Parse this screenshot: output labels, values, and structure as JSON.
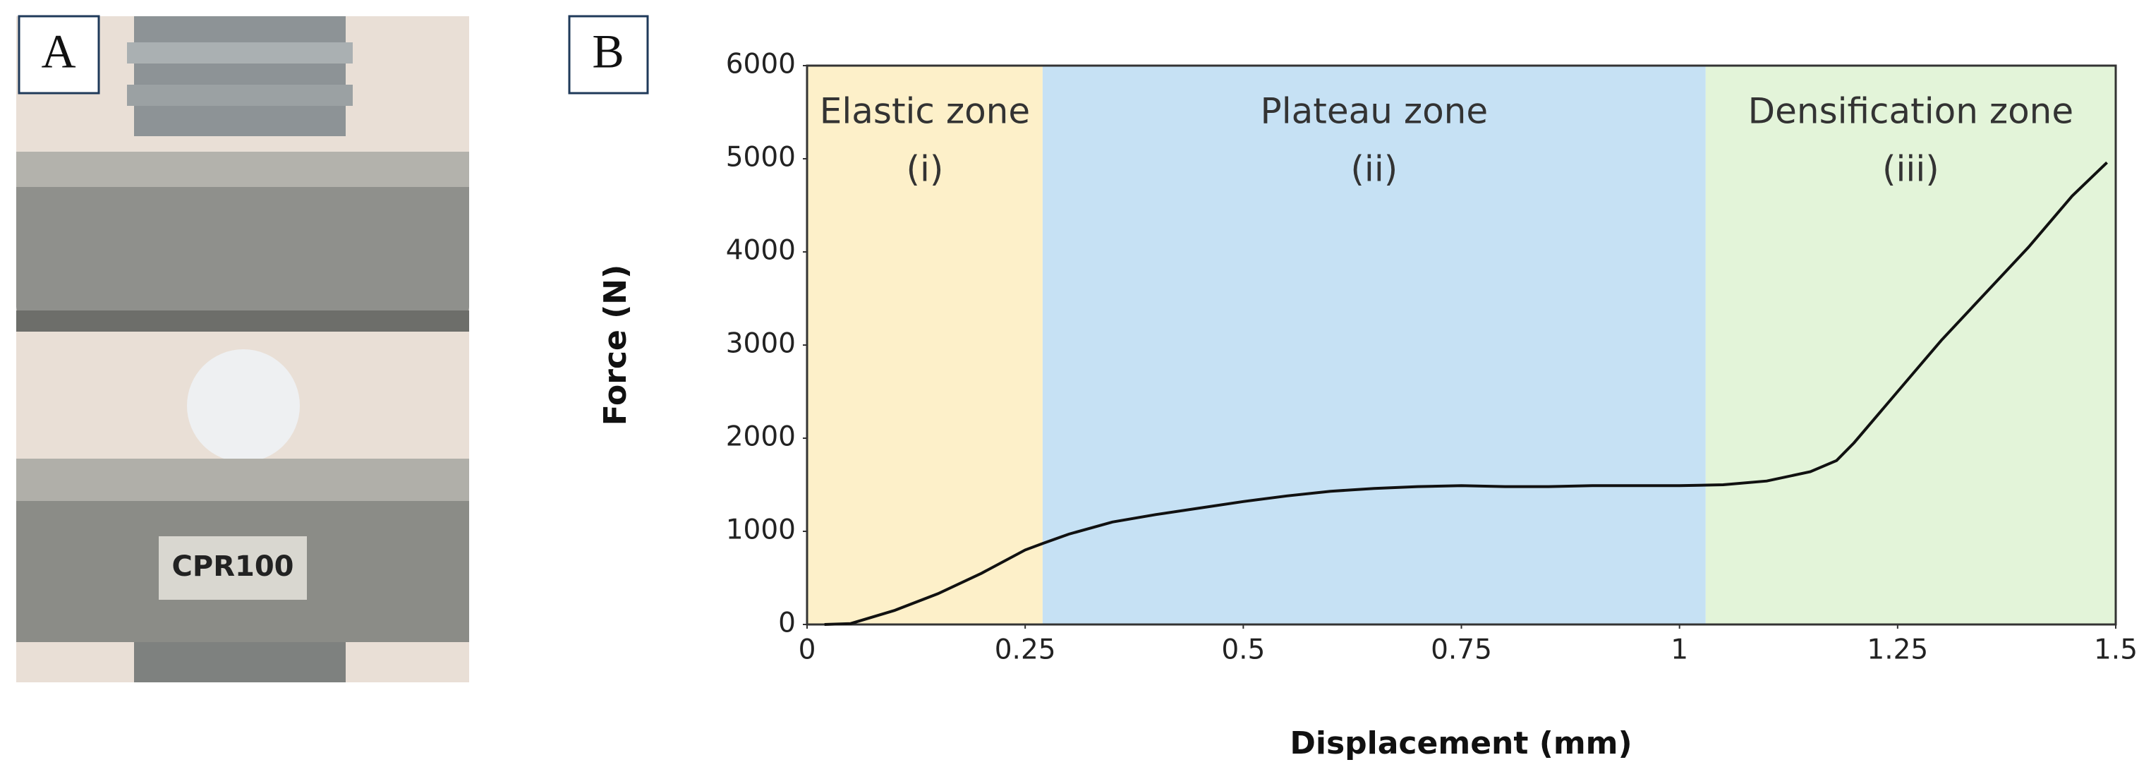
{
  "panel_a": {
    "label": "A",
    "photo_text": "CPR100"
  },
  "chart_data": {
    "type": "line",
    "panel_label": "B",
    "xlabel": "Displacement (mm)",
    "ylabel": "Force (N)",
    "xlim": [
      0,
      1.5
    ],
    "xticks": [
      0,
      0.25,
      0.5,
      0.75,
      1,
      1.25,
      1.5
    ],
    "ylim": [
      0,
      6000
    ],
    "yticks": [
      0,
      1000,
      2000,
      3000,
      4000,
      5000,
      6000
    ],
    "zones": [
      {
        "name": "Elastic zone",
        "sub": "(i)",
        "start": 0,
        "end": 0.27,
        "color": "#fdf0c9"
      },
      {
        "name": "Plateau zone",
        "sub": "(ii)",
        "start": 0.27,
        "end": 1.03,
        "color": "#c6e1f4"
      },
      {
        "name": "Densification zone",
        "sub": "(iii)",
        "start": 1.03,
        "end": 1.5,
        "color": "#e3f4d9"
      }
    ],
    "color": "#111111",
    "x": [
      0.02,
      0.05,
      0.1,
      0.15,
      0.2,
      0.25,
      0.27,
      0.3,
      0.35,
      0.4,
      0.45,
      0.5,
      0.55,
      0.6,
      0.65,
      0.7,
      0.75,
      0.8,
      0.85,
      0.9,
      0.95,
      1.0,
      1.05,
      1.1,
      1.15,
      1.18,
      1.2,
      1.25,
      1.3,
      1.35,
      1.4,
      1.45,
      1.49
    ],
    "values": [
      0,
      10,
      150,
      330,
      550,
      800,
      870,
      970,
      1100,
      1180,
      1250,
      1320,
      1380,
      1430,
      1460,
      1480,
      1490,
      1480,
      1480,
      1490,
      1490,
      1490,
      1500,
      1540,
      1640,
      1760,
      1950,
      2500,
      3050,
      3550,
      4050,
      4600,
      4960
    ]
  }
}
